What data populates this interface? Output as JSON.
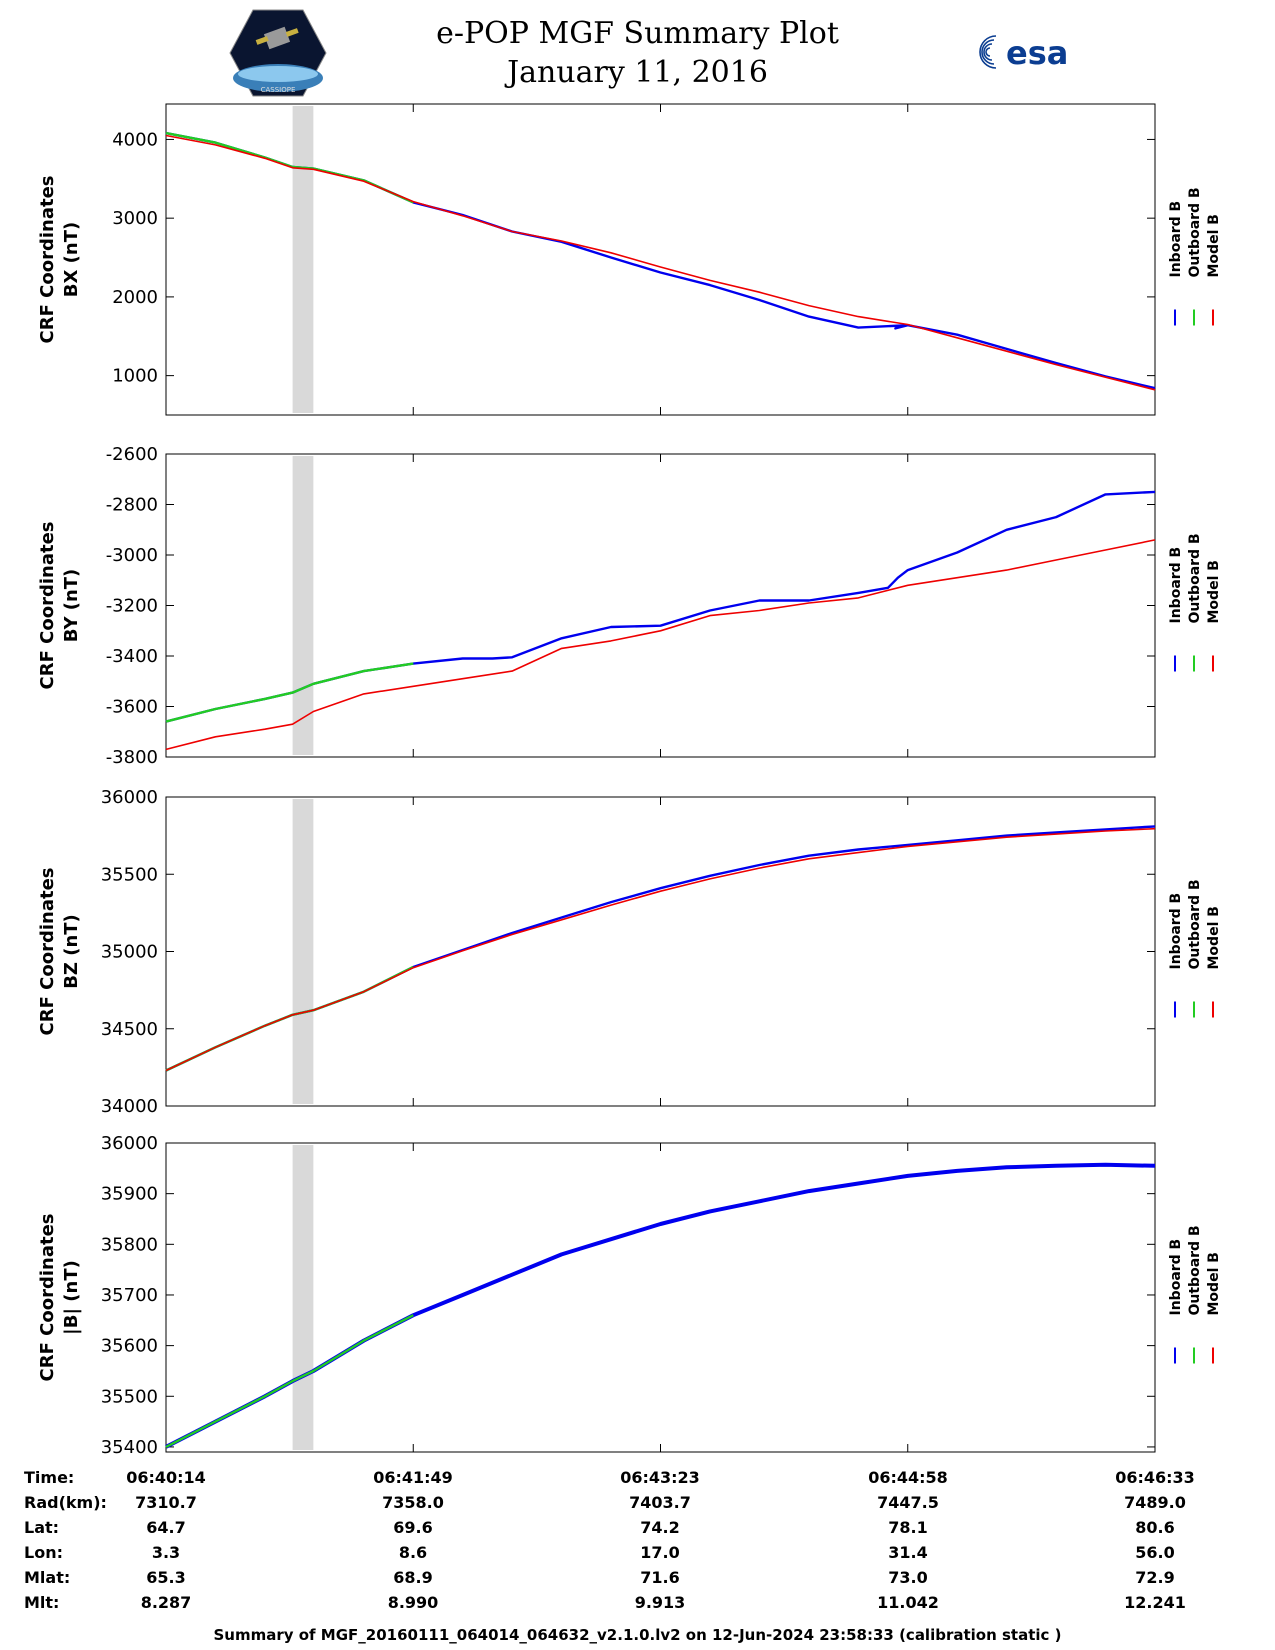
{
  "header": {
    "title": "e-POP MGF Summary Plot",
    "date": "January 11, 2016",
    "left_logo_text": "CASSIOPE",
    "right_logo_text": "esa"
  },
  "colors": {
    "inboard": "#0000ee",
    "outboard": "#22cc22",
    "model": "#ee0000",
    "shade": "#d9d9d9"
  },
  "legend": {
    "inboard": "Inboard B",
    "outboard": "Outboard B",
    "model": "Model B"
  },
  "chart_data": [
    {
      "type": "line",
      "ylabel_line1": "CRF Coordinates",
      "ylabel_line2": "BX (nT)",
      "ylim": [
        500,
        4450
      ],
      "yticks": [
        1000,
        2000,
        3000,
        4000
      ],
      "xlim": [
        0,
        1
      ],
      "shaded_region": [
        0.128,
        0.149
      ],
      "series": [
        {
          "name": "Inboard B",
          "x": [
            0.0,
            0.05,
            0.1,
            0.128,
            0.149,
            0.2,
            0.25,
            0.3,
            0.35,
            0.4,
            0.45,
            0.5,
            0.55,
            0.6,
            0.65,
            0.7,
            0.75,
            0.7375,
            0.75,
            0.8,
            0.85,
            0.9,
            0.95,
            1.0
          ],
          "y": [
            4080,
            3960,
            3770,
            3650,
            3630,
            3480,
            3200,
            3040,
            2830,
            2700,
            2500,
            2310,
            2150,
            1960,
            1750,
            1610,
            1640,
            1600,
            1640,
            1520,
            1340,
            1160,
            990,
            840
          ]
        },
        {
          "name": "Outboard B",
          "x": [
            0.0,
            0.05,
            0.1,
            0.128,
            0.149,
            0.2,
            0.25
          ],
          "y": [
            4080,
            3960,
            3770,
            3650,
            3630,
            3480,
            3200
          ]
        },
        {
          "name": "Model B",
          "x": [
            0.0,
            0.05,
            0.1,
            0.128,
            0.149,
            0.2,
            0.25,
            0.3,
            0.35,
            0.4,
            0.45,
            0.5,
            0.55,
            0.6,
            0.65,
            0.7,
            0.75,
            0.8,
            0.85,
            0.9,
            0.95,
            1.0
          ],
          "y": [
            4050,
            3930,
            3760,
            3640,
            3620,
            3470,
            3210,
            3030,
            2830,
            2710,
            2560,
            2380,
            2210,
            2060,
            1890,
            1750,
            1650,
            1480,
            1310,
            1140,
            980,
            820
          ]
        }
      ]
    },
    {
      "type": "line",
      "ylabel_line1": "CRF Coordinates",
      "ylabel_line2": "BY (nT)",
      "ylim": [
        -3800,
        -2600
      ],
      "yticks": [
        -2600,
        -2800,
        -3000,
        -3200,
        -3400,
        -3600,
        -3800
      ],
      "xlim": [
        0,
        1
      ],
      "shaded_region": [
        0.128,
        0.149
      ],
      "series": [
        {
          "name": "Inboard B",
          "x": [
            0.0,
            0.05,
            0.1,
            0.128,
            0.149,
            0.2,
            0.25,
            0.3,
            0.33,
            0.35,
            0.4,
            0.45,
            0.5,
            0.55,
            0.6,
            0.65,
            0.7,
            0.73,
            0.74,
            0.75,
            0.8,
            0.85,
            0.9,
            0.95,
            1.0
          ],
          "y": [
            -3660,
            -3610,
            -3570,
            -3545,
            -3510,
            -3460,
            -3430,
            -3410,
            -3410,
            -3405,
            -3330,
            -3285,
            -3280,
            -3220,
            -3180,
            -3180,
            -3150,
            -3130,
            -3090,
            -3060,
            -2990,
            -2900,
            -2850,
            -2760,
            -2750
          ]
        },
        {
          "name": "Outboard B",
          "x": [
            0.0,
            0.05,
            0.1,
            0.128,
            0.149,
            0.2,
            0.25
          ],
          "y": [
            -3660,
            -3610,
            -3570,
            -3545,
            -3510,
            -3460,
            -3430
          ]
        },
        {
          "name": "Model B",
          "x": [
            0.0,
            0.05,
            0.1,
            0.128,
            0.149,
            0.2,
            0.25,
            0.3,
            0.35,
            0.4,
            0.45,
            0.5,
            0.55,
            0.6,
            0.65,
            0.7,
            0.75,
            0.8,
            0.85,
            0.9,
            0.95,
            1.0
          ],
          "y": [
            -3770,
            -3720,
            -3690,
            -3670,
            -3620,
            -3550,
            -3520,
            -3490,
            -3460,
            -3370,
            -3340,
            -3300,
            -3240,
            -3220,
            -3190,
            -3170,
            -3120,
            -3090,
            -3060,
            -3020,
            -2980,
            -2940
          ]
        }
      ]
    },
    {
      "type": "line",
      "ylabel_line1": "CRF Coordinates",
      "ylabel_line2": "BZ (nT)",
      "ylim": [
        34000,
        36000
      ],
      "yticks": [
        34000,
        34500,
        35000,
        35500,
        36000
      ],
      "xlim": [
        0,
        1
      ],
      "shaded_region": [
        0.128,
        0.149
      ],
      "series": [
        {
          "name": "Inboard B",
          "x": [
            0.0,
            0.05,
            0.1,
            0.128,
            0.149,
            0.2,
            0.25,
            0.3,
            0.35,
            0.4,
            0.45,
            0.5,
            0.55,
            0.6,
            0.65,
            0.7,
            0.75,
            0.8,
            0.85,
            0.9,
            0.95,
            1.0
          ],
          "y": [
            34230,
            34380,
            34520,
            34590,
            34620,
            34740,
            34900,
            35010,
            35120,
            35220,
            35320,
            35410,
            35490,
            35560,
            35620,
            35660,
            35690,
            35720,
            35750,
            35770,
            35790,
            35810
          ]
        },
        {
          "name": "Outboard B",
          "x": [
            0.0,
            0.05,
            0.1,
            0.128,
            0.149,
            0.2,
            0.25
          ],
          "y": [
            34230,
            34380,
            34520,
            34590,
            34620,
            34740,
            34900
          ]
        },
        {
          "name": "Model B",
          "x": [
            0.0,
            0.05,
            0.1,
            0.128,
            0.149,
            0.2,
            0.25,
            0.3,
            0.35,
            0.4,
            0.45,
            0.5,
            0.55,
            0.6,
            0.65,
            0.7,
            0.75,
            0.8,
            0.85,
            0.9,
            0.95,
            1.0
          ],
          "y": [
            34230,
            34380,
            34520,
            34590,
            34620,
            34740,
            34895,
            35005,
            35110,
            35205,
            35300,
            35390,
            35470,
            35540,
            35600,
            35640,
            35680,
            35710,
            35740,
            35760,
            35780,
            35795
          ]
        }
      ]
    },
    {
      "type": "line",
      "ylabel_line1": "CRF Coordinates",
      "ylabel_line2": "|B| (nT)",
      "ylim": [
        35390,
        36000
      ],
      "yticks": [
        35400,
        35500,
        35600,
        35700,
        35800,
        35900,
        36000
      ],
      "xlim": [
        0,
        1
      ],
      "shaded_region": [
        0.128,
        0.149
      ],
      "series": [
        {
          "name": "Inboard B",
          "x": [
            0.0,
            0.05,
            0.1,
            0.128,
            0.149,
            0.2,
            0.25,
            0.3,
            0.35,
            0.4,
            0.45,
            0.5,
            0.55,
            0.6,
            0.65,
            0.7,
            0.75,
            0.8,
            0.85,
            0.9,
            0.95,
            1.0
          ],
          "y": [
            35400,
            35450,
            35500,
            35530,
            35550,
            35610,
            35660,
            35700,
            35740,
            35780,
            35810,
            35840,
            35865,
            35885,
            35905,
            35920,
            35935,
            35945,
            35952,
            35955,
            35957,
            35955
          ]
        },
        {
          "name": "Outboard B",
          "x": [
            0.0,
            0.05,
            0.1,
            0.128,
            0.149,
            0.2,
            0.25
          ],
          "y": [
            35400,
            35450,
            35500,
            35530,
            35550,
            35610,
            35660
          ]
        },
        {
          "name": "Model B",
          "x": [],
          "y": []
        }
      ]
    }
  ],
  "ephemeris": {
    "labels": [
      "Time:",
      "Rad(km):",
      "Lat:",
      "Lon:",
      "Mlat:",
      "Mlt:"
    ],
    "columns": [
      [
        "06:40:14",
        "7310.7",
        "64.7",
        "3.3",
        "65.3",
        "8.287"
      ],
      [
        "06:41:49",
        "7358.0",
        "69.6",
        "8.6",
        "68.9",
        "8.990"
      ],
      [
        "06:43:23",
        "7403.7",
        "74.2",
        "17.0",
        "71.6",
        "9.913"
      ],
      [
        "06:44:58",
        "7447.5",
        "78.1",
        "31.4",
        "73.0",
        "11.042"
      ],
      [
        "06:46:33",
        "7489.0",
        "80.6",
        "56.0",
        "72.9",
        "12.241"
      ]
    ]
  },
  "footer": "Summary of MGF_20160111_064014_064632_v2.1.0.lv2 on 12-Jun-2024 23:58:33 (calibration static )"
}
